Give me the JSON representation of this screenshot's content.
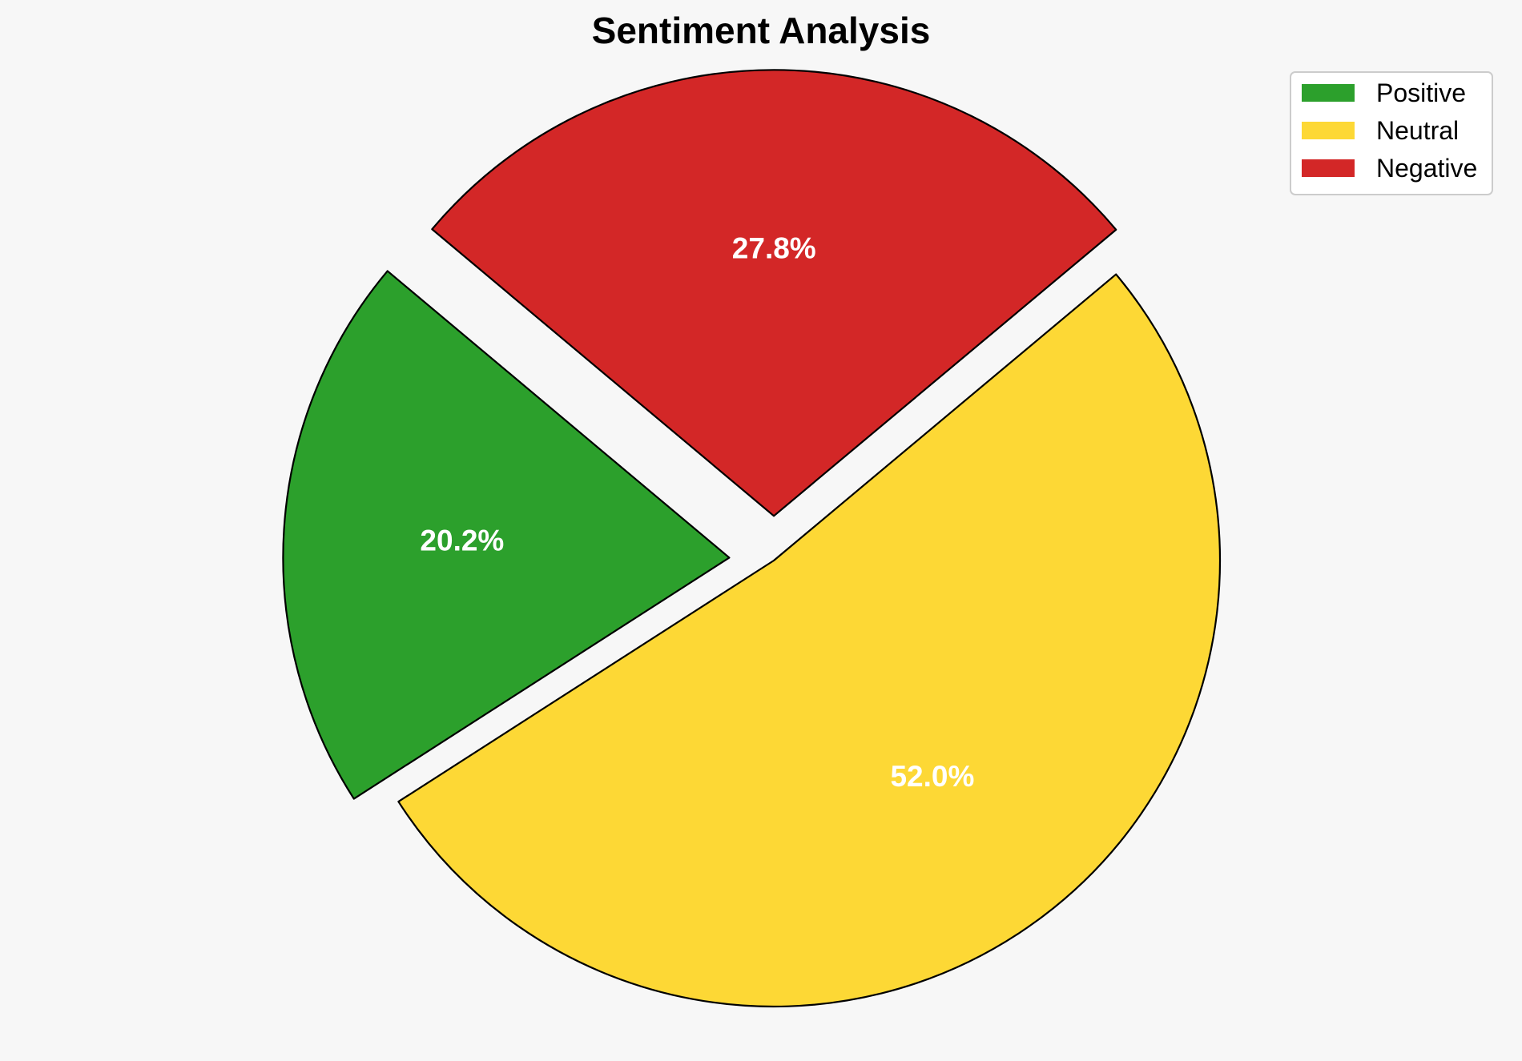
{
  "chart_data": {
    "type": "pie",
    "title": "Sentiment Analysis",
    "labels": [
      "Positive",
      "Neutral",
      "Negative"
    ],
    "values": [
      20.2,
      52.0,
      27.8
    ],
    "value_labels": [
      "20.2%",
      "52.0%",
      "27.8%"
    ],
    "colors": [
      "#2ca02c",
      "#fdd835",
      "#d32727"
    ],
    "exploded": [
      true,
      false,
      true
    ],
    "start_angle_degrees": 140,
    "direction": "counterclockwise",
    "legend_position": "top-right",
    "slice_edge_color": "#000000"
  },
  "background_color": "#f7f7f7"
}
